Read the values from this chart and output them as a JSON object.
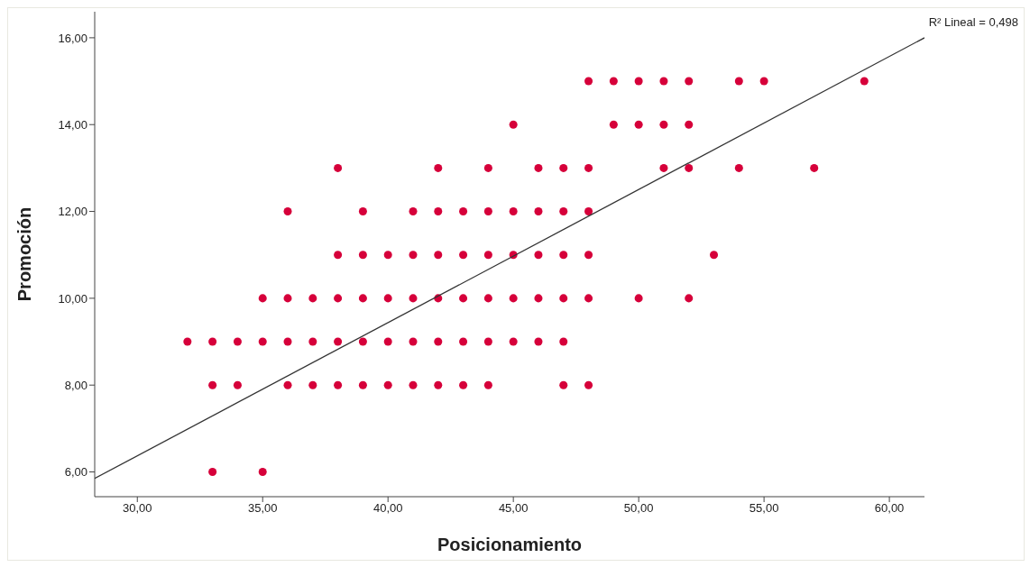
{
  "chart_data": {
    "type": "scatter",
    "xlabel": "Posicionamiento",
    "ylabel": "Promoción",
    "annotations": [
      "R² Lineal = 0,498"
    ],
    "xlim": [
      28.3,
      61.4
    ],
    "ylim": [
      5.43,
      16.6
    ],
    "xticks": [
      {
        "value": 30,
        "label": "30,00"
      },
      {
        "value": 35,
        "label": "35,00"
      },
      {
        "value": 40,
        "label": "40,00"
      },
      {
        "value": 45,
        "label": "45,00"
      },
      {
        "value": 50,
        "label": "50,00"
      },
      {
        "value": 55,
        "label": "55,00"
      },
      {
        "value": 60,
        "label": "60,00"
      }
    ],
    "yticks": [
      {
        "value": 6,
        "label": "6,00"
      },
      {
        "value": 8,
        "label": "8,00"
      },
      {
        "value": 10,
        "label": "10,00"
      },
      {
        "value": 12,
        "label": "12,00"
      },
      {
        "value": 14,
        "label": "14,00"
      },
      {
        "value": 16,
        "label": "16,00"
      }
    ],
    "grid": false,
    "series": [
      {
        "color": "#d6003a",
        "marker": "circle",
        "x": [
          48,
          49,
          50,
          51,
          52,
          54,
          55,
          59,
          45,
          49,
          50,
          51,
          52,
          38,
          42,
          44,
          46,
          47,
          48,
          51,
          52,
          54,
          57,
          36,
          39,
          41,
          42,
          43,
          44,
          45,
          46,
          47,
          48,
          38,
          39,
          40,
          41,
          42,
          43,
          44,
          45,
          46,
          47,
          48,
          53,
          35,
          36,
          37,
          38,
          39,
          40,
          41,
          42,
          43,
          44,
          45,
          46,
          47,
          48,
          50,
          52,
          32,
          33,
          34,
          35,
          36,
          37,
          38,
          39,
          40,
          41,
          42,
          43,
          44,
          45,
          46,
          47,
          33,
          34,
          36,
          37,
          38,
          39,
          40,
          41,
          42,
          43,
          44,
          47,
          48,
          33,
          35
        ],
        "values": [
          15,
          15,
          15,
          15,
          15,
          15,
          15,
          15,
          14,
          14,
          14,
          14,
          14,
          13,
          13,
          13,
          13,
          13,
          13,
          13,
          13,
          13,
          13,
          12,
          12,
          12,
          12,
          12,
          12,
          12,
          12,
          12,
          12,
          11,
          11,
          11,
          11,
          11,
          11,
          11,
          11,
          11,
          11,
          11,
          11,
          10,
          10,
          10,
          10,
          10,
          10,
          10,
          10,
          10,
          10,
          10,
          10,
          10,
          10,
          10,
          10,
          9,
          9,
          9,
          9,
          9,
          9,
          9,
          9,
          9,
          9,
          9,
          9,
          9,
          9,
          9,
          9,
          8,
          8,
          8,
          8,
          8,
          8,
          8,
          8,
          8,
          8,
          8,
          8,
          8,
          6,
          6
        ]
      },
      {
        "type": "line",
        "color": "#333333",
        "marker": "none",
        "x": [
          28.3,
          61.4
        ],
        "values": [
          5.85,
          16.0
        ]
      }
    ]
  }
}
